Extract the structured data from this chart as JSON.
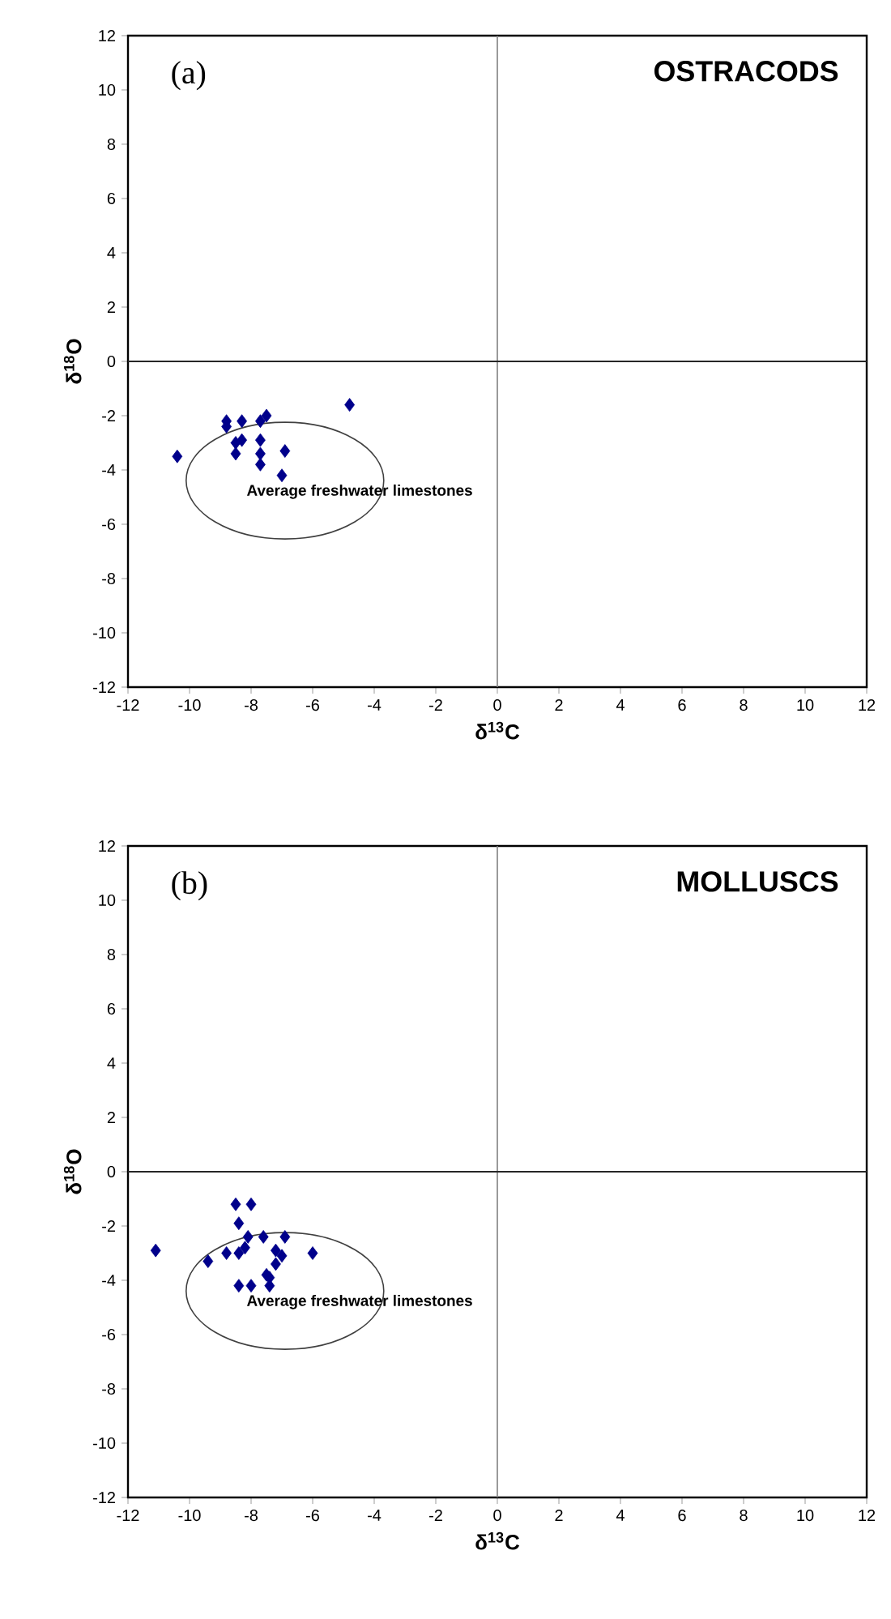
{
  "chart_data": [
    {
      "type": "scatter",
      "title": "OSTRACODS",
      "xlabel": "δ$^{13}$C",
      "ylabel": "δ$^{18}$O",
      "marker": "diamond",
      "grid": false,
      "xlim": [
        -12,
        12
      ],
      "ylim": [
        -12,
        12
      ],
      "xticks": [
        -12,
        -10,
        -8,
        -6,
        -4,
        -2,
        0,
        2,
        4,
        6,
        8,
        10,
        12
      ],
      "yticks": [
        -12,
        -10,
        -8,
        -6,
        -4,
        -2,
        0,
        2,
        4,
        6,
        8,
        10,
        12
      ],
      "ref_lines": [
        {
          "axis": "x",
          "value": 0
        },
        {
          "axis": "y",
          "value": 0
        }
      ],
      "annotations": [
        "(a)",
        "Average freshwater limestones"
      ],
      "series": [
        {
          "color": "#00008b",
          "x": [
            -10.4,
            -8.8,
            -8.8,
            -8.3,
            -7.7,
            -7.5,
            -8.3,
            -8.5,
            -8.5,
            -7.7,
            -7.7,
            -7.7,
            -6.9,
            -7.0,
            -4.8
          ],
          "values": [
            -3.5,
            -2.2,
            -2.4,
            -2.2,
            -2.2,
            -2.0,
            -2.9,
            -3.0,
            -3.4,
            -2.9,
            -3.4,
            -3.8,
            -3.3,
            -4.2,
            -1.6
          ]
        }
      ]
    },
    {
      "type": "scatter",
      "title": "MOLLUSCS",
      "xlabel": "δ$^{13}$C",
      "ylabel": "δ$^{18}$O",
      "marker": "diamond",
      "grid": false,
      "xlim": [
        -12,
        12
      ],
      "ylim": [
        -12,
        12
      ],
      "xticks": [
        -12,
        -10,
        -8,
        -6,
        -4,
        -2,
        0,
        2,
        4,
        6,
        8,
        10,
        12
      ],
      "yticks": [
        -12,
        -10,
        -8,
        -6,
        -4,
        -2,
        0,
        2,
        4,
        6,
        8,
        10,
        12
      ],
      "ref_lines": [
        {
          "axis": "x",
          "value": 0
        },
        {
          "axis": "y",
          "value": 0
        }
      ],
      "annotations": [
        "(b)",
        "Average freshwater limestones"
      ],
      "series": [
        {
          "color": "#00008b",
          "x": [
            -11.1,
            -8.5,
            -8.0,
            -8.4,
            -8.1,
            -7.6,
            -6.9,
            -8.8,
            -8.4,
            -8.2,
            -9.4,
            -7.2,
            -7.0,
            -6.0,
            -7.2,
            -7.5,
            -7.4,
            -8.4,
            -8.0,
            -7.4
          ],
          "values": [
            -2.9,
            -1.2,
            -1.2,
            -1.9,
            -2.4,
            -2.4,
            -2.4,
            -3.0,
            -3.0,
            -2.8,
            -3.3,
            -2.9,
            -3.1,
            -3.0,
            -3.4,
            -3.8,
            -3.9,
            -4.2,
            -4.2,
            -4.2
          ]
        }
      ]
    }
  ]
}
